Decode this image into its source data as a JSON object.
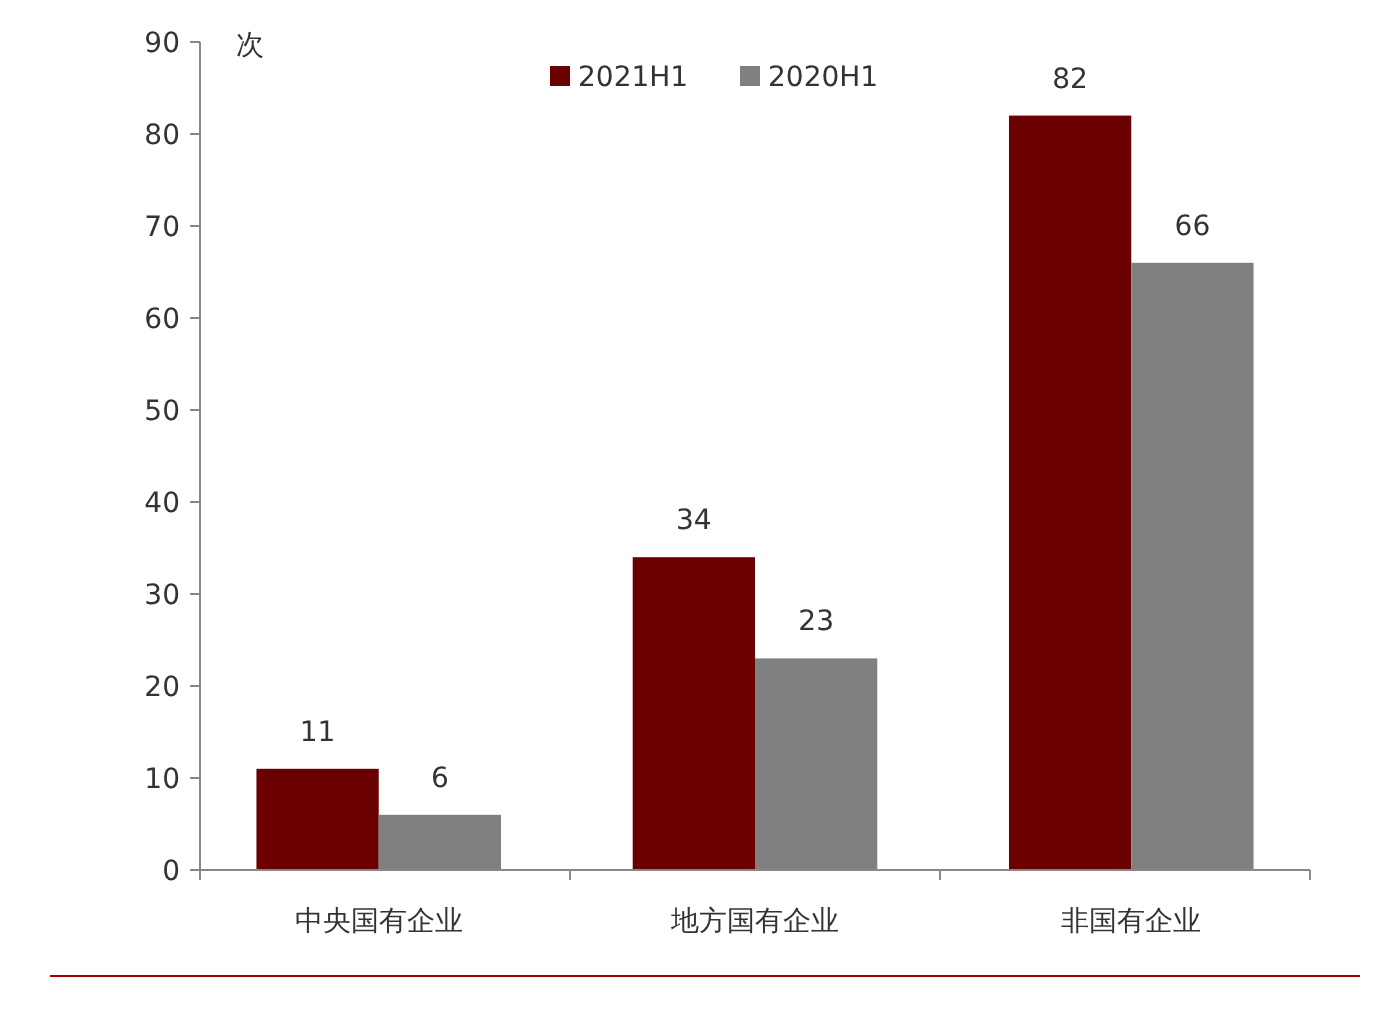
{
  "chart_data": {
    "type": "bar",
    "ylabel": "次",
    "categories": [
      "中央国有企业",
      "地方国有企业",
      "非国有企业"
    ],
    "series": [
      {
        "name": "2021H1",
        "color": "#6b0000",
        "values": [
          11,
          34,
          82
        ]
      },
      {
        "name": "2020H1",
        "color": "#808080",
        "values": [
          6,
          23,
          66
        ]
      }
    ],
    "ylim": [
      0,
      90
    ],
    "yticks": [
      0,
      10,
      20,
      30,
      40,
      50,
      60,
      70,
      80,
      90
    ],
    "data_labels": true,
    "legend": "top",
    "grid": false
  }
}
